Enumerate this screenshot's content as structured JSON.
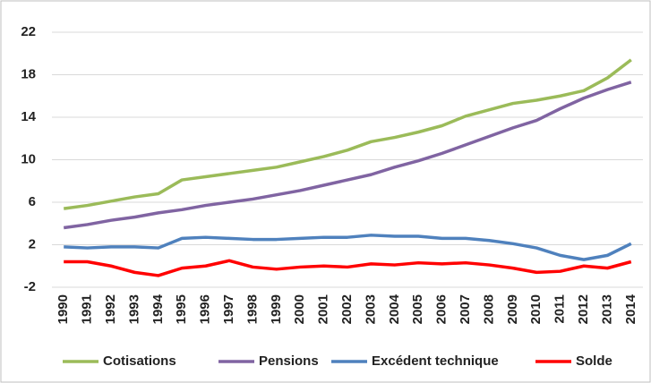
{
  "chart_data": {
    "type": "line",
    "categories": [
      "1990",
      "1991",
      "1992",
      "1993",
      "1994",
      "1995",
      "1996",
      "1997",
      "1998",
      "1999",
      "2000",
      "2001",
      "2002",
      "2003",
      "2004",
      "2005",
      "2006",
      "2007",
      "2008",
      "2009",
      "2010",
      "2011",
      "2012",
      "2013",
      "2014"
    ],
    "series": [
      {
        "name": "Cotisations",
        "color": "#9bbb59",
        "values": [
          5.4,
          5.7,
          6.1,
          6.5,
          6.8,
          8.1,
          8.4,
          8.7,
          9.0,
          9.3,
          9.8,
          10.3,
          10.9,
          11.7,
          12.1,
          12.6,
          13.2,
          14.1,
          14.7,
          15.3,
          15.6,
          16.0,
          16.5,
          17.7,
          19.4
        ]
      },
      {
        "name": "Pensions",
        "color": "#8064a2",
        "values": [
          3.6,
          3.9,
          4.3,
          4.6,
          5.0,
          5.3,
          5.7,
          6.0,
          6.3,
          6.7,
          7.1,
          7.6,
          8.1,
          8.6,
          9.3,
          9.9,
          10.6,
          11.4,
          12.2,
          13.0,
          13.7,
          14.8,
          15.8,
          16.6,
          17.3
        ]
      },
      {
        "name": "Excédent technique",
        "color": "#4f81bd",
        "values": [
          1.8,
          1.7,
          1.8,
          1.8,
          1.7,
          2.6,
          2.7,
          2.6,
          2.5,
          2.5,
          2.6,
          2.7,
          2.7,
          2.9,
          2.8,
          2.8,
          2.6,
          2.6,
          2.4,
          2.1,
          1.7,
          1.0,
          0.6,
          1.0,
          2.1
        ]
      },
      {
        "name": "Solde",
        "color": "#ff0000",
        "values": [
          0.4,
          0.4,
          0.0,
          -0.6,
          -0.9,
          -0.2,
          0.0,
          0.5,
          -0.1,
          -0.3,
          -0.1,
          0.0,
          -0.1,
          0.2,
          0.1,
          0.3,
          0.2,
          0.3,
          0.1,
          -0.2,
          -0.6,
          -0.5,
          0.0,
          -0.2,
          0.4
        ]
      }
    ],
    "ylim": [
      -2,
      22
    ],
    "yticks": [
      -2,
      2,
      6,
      10,
      14,
      18,
      22
    ],
    "grid": true,
    "legend": "bottom"
  }
}
